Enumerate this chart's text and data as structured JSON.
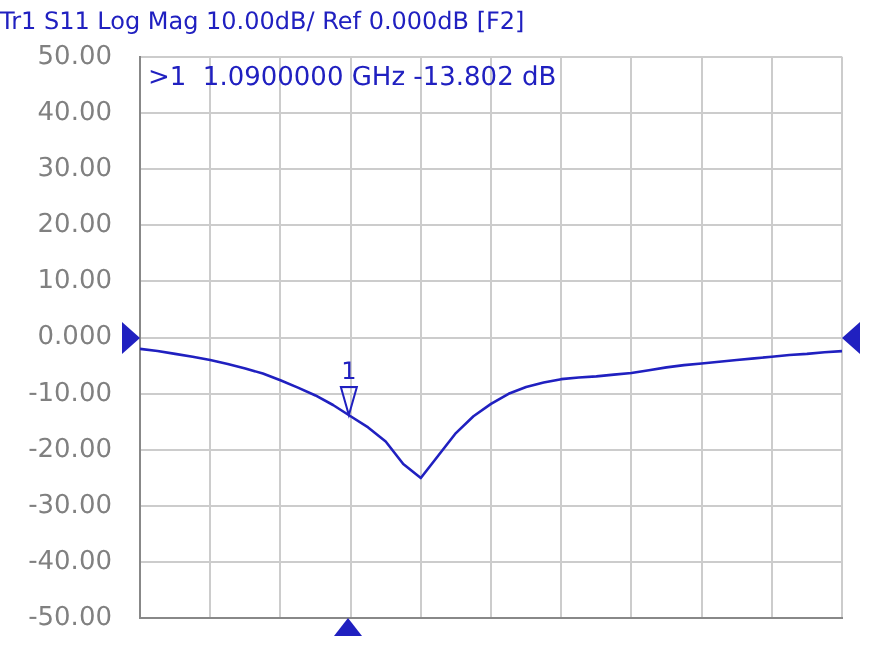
{
  "chart_data": {
    "type": "line",
    "title": "Tr1 S11 Log Mag 10.00dB/ Ref 0.000dB [F2]",
    "categories": [
      null,
      null,
      null,
      null,
      null,
      null,
      null,
      null,
      null,
      null,
      null,
      null,
      null,
      null,
      null,
      null,
      null,
      null,
      null,
      null,
      null,
      null,
      null,
      null,
      null,
      null,
      null,
      null,
      null,
      null,
      null,
      null,
      null,
      null,
      null,
      null,
      null,
      null,
      null,
      null,
      null
    ],
    "series": [
      {
        "color": "#2020c0",
        "values": [
          -2.0,
          -2.4,
          -2.9,
          -3.4,
          -4.0,
          -4.7,
          -5.5,
          -6.4,
          -7.6,
          -8.9,
          -10.3,
          -12.0,
          -14.0,
          -16.0,
          -18.5,
          -22.5,
          -25.0,
          -21.0,
          -17.0,
          -14.0,
          -11.8,
          -10.0,
          -8.8,
          -8.0,
          -7.4,
          -7.1,
          -6.9,
          -6.6,
          -6.3,
          -5.8,
          -5.3,
          -4.9,
          -4.6,
          -4.3,
          -4.0,
          -3.7,
          -3.4,
          -3.1,
          -2.9,
          -2.6,
          -2.4
        ]
      }
    ],
    "ylim": [
      -50,
      50
    ],
    "yticks": [
      {
        "value": 50,
        "label": "50.00"
      },
      {
        "value": 40,
        "label": "40.00"
      },
      {
        "value": 30,
        "label": "30.00"
      },
      {
        "value": 20,
        "label": "20.00"
      },
      {
        "value": 10,
        "label": "10.00"
      },
      {
        "value": 0,
        "label": "0.000"
      },
      {
        "value": -10,
        "label": "-10.00"
      },
      {
        "value": -20,
        "label": "-20.00"
      },
      {
        "value": -30,
        "label": "-30.00"
      },
      {
        "value": -40,
        "label": "-40.00"
      },
      {
        "value": -50,
        "label": "-50.00"
      }
    ],
    "annotations": [
      ">1  1.0900000 GHz -13.802 dB",
      {
        "text": "1",
        "y": -13.802
      }
    ],
    "grid": true,
    "legend": false,
    "marker": "none",
    "line_style": "solid"
  }
}
